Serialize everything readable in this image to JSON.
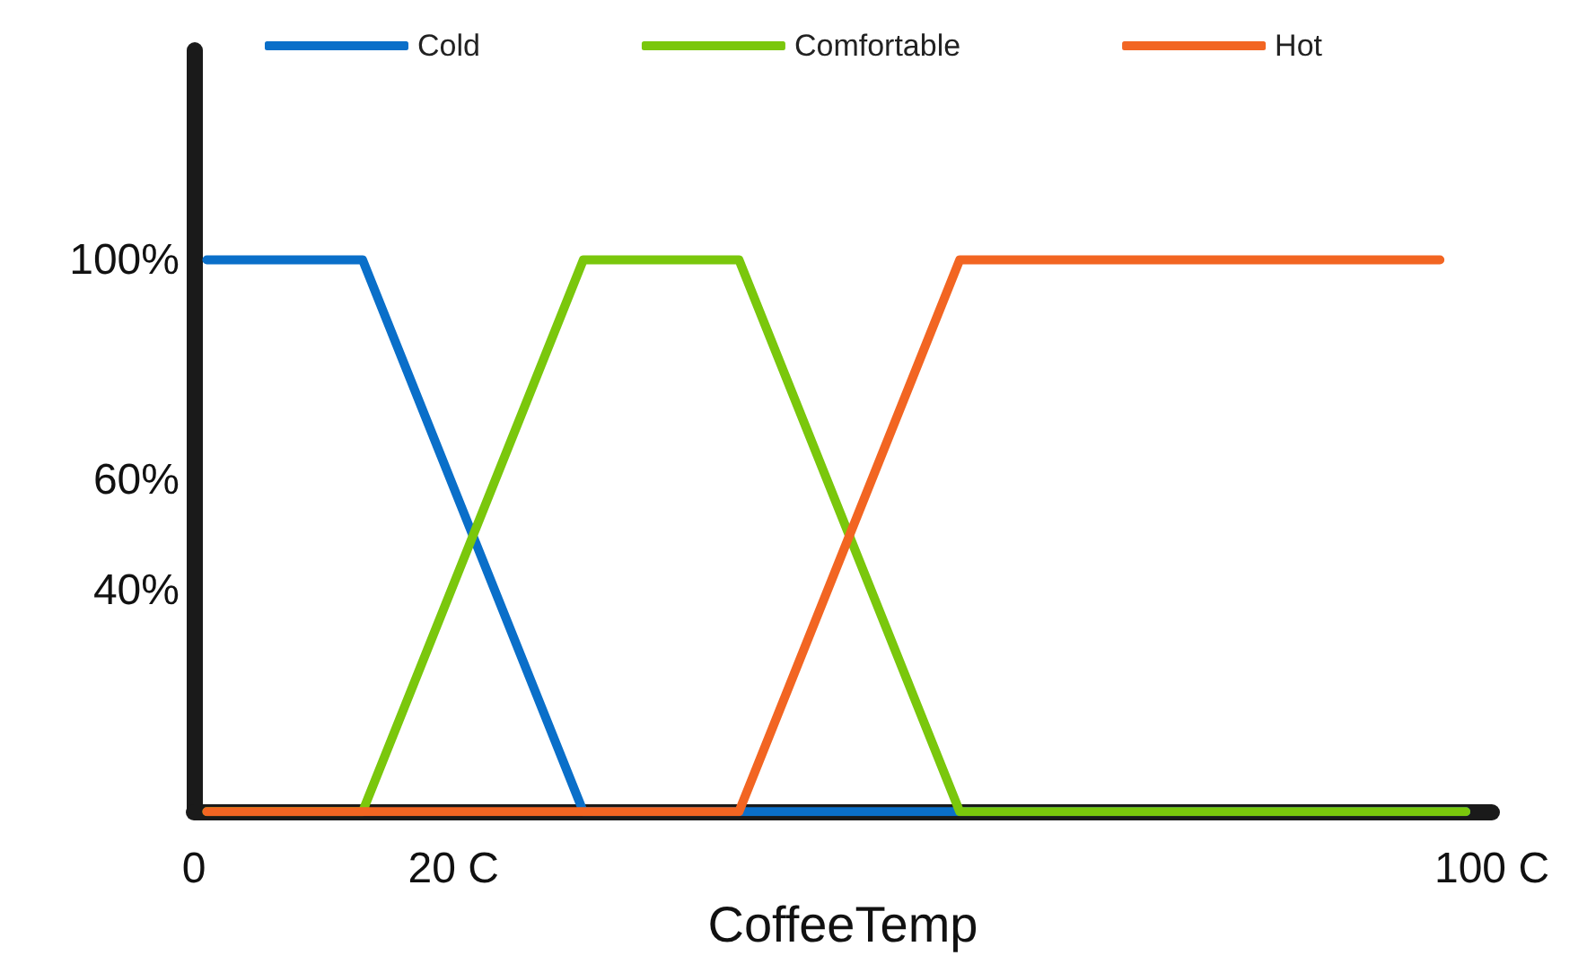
{
  "chart_data": {
    "type": "line",
    "xlabel": "CoffeeTemp",
    "xlim": [
      0,
      100
    ],
    "ylim": [
      0,
      138
    ],
    "xticks": [
      0,
      {
        "value": 20,
        "label": "20 C"
      },
      {
        "value": 100,
        "label": "100 C"
      }
    ],
    "yticks": [
      {
        "value": 40,
        "label": "40%"
      },
      {
        "value": 60,
        "label": "60%"
      },
      {
        "value": 100,
        "label": "100%"
      }
    ],
    "grid": false,
    "legend": "top",
    "marker": "none",
    "line_style": "solid",
    "series": [
      {
        "name": "Cold",
        "color": "#0a6fc9",
        "x": [
          1,
          13,
          30,
          98
        ],
        "values": [
          100,
          100,
          0,
          0
        ]
      },
      {
        "name": "Comfortable",
        "color": "#7ac70c",
        "x": [
          1,
          13,
          30,
          42,
          59,
          98
        ],
        "values": [
          0,
          0,
          100,
          100,
          0,
          0
        ]
      },
      {
        "name": "Hot",
        "color": "#f26522",
        "x": [
          1,
          42,
          59,
          96
        ],
        "values": [
          0,
          0,
          100,
          100
        ]
      }
    ]
  }
}
